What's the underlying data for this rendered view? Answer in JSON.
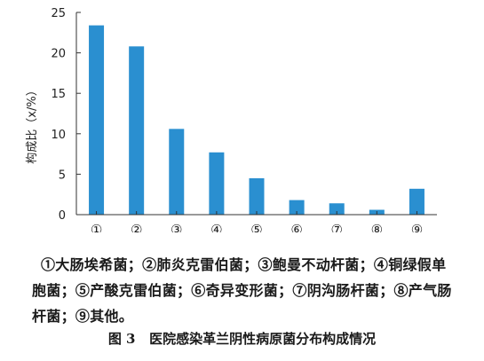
{
  "chart_data": {
    "type": "bar",
    "categories": [
      "①",
      "②",
      "③",
      "④",
      "⑤",
      "⑥",
      "⑦",
      "⑧",
      "⑨"
    ],
    "values": [
      23.4,
      20.8,
      10.6,
      7.7,
      4.5,
      1.8,
      1.4,
      0.6,
      3.2
    ],
    "ylabel": "构成比（x/%）",
    "ylim": [
      0,
      25
    ],
    "yticks": [
      0,
      5,
      10,
      15,
      20,
      25
    ],
    "grid": false,
    "bar_color": "#2a8fd0"
  },
  "legend_text": "①大肠埃希菌；②肺炎克雷伯菌；③鲍曼不动杆菌；④铜绿假单胞菌；⑤产酸克雷伯菌；⑥奇异变形菌；⑦阴沟肠杆菌；⑧产气肠杆菌；⑨其他。",
  "caption": {
    "label": "图 3",
    "title": "医院感染革兰阴性病原菌分布构成情况"
  }
}
